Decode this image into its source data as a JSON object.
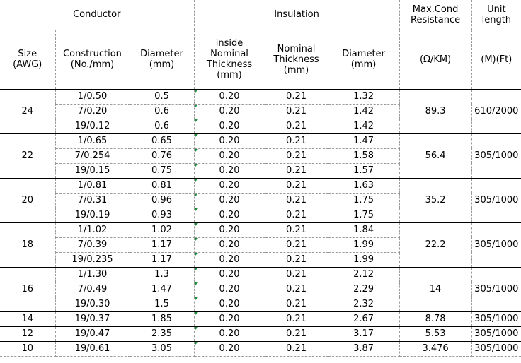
{
  "headers": {
    "conductor": "Conductor",
    "insulation": "Insulation",
    "max_cond_1": "Max.Cond",
    "max_cond_2": "Resistance",
    "unit_1": "Unit",
    "unit_2": "length",
    "size_1": "Size",
    "size_2": "(AWG)",
    "construction_1": "Construction",
    "construction_2": "(No./mm)",
    "diameter_1": "Diameter",
    "diameter_2": "(mm)",
    "inside_1": "inside",
    "inside_2": "Nominal",
    "inside_3": "Thickness",
    "inside_4": "(mm)",
    "nominal_1": "Nominal",
    "nominal_2": "Thickness",
    "nominal_3": "(mm)",
    "ins_diameter_1": "Diameter",
    "ins_diameter_2": "(mm)",
    "resistance_unit": "(Ω/KM)",
    "length_unit": "(M)(Ft)"
  },
  "groups": [
    {
      "size": "24",
      "resistance": "89.3",
      "length": "610/2000",
      "rows": [
        {
          "construction": "1/0.50",
          "diameter": "0.5",
          "inside": "0.20",
          "nominal": "0.21",
          "ins_diameter": "1.32"
        },
        {
          "construction": "7/0.20",
          "diameter": "0.6",
          "inside": "0.20",
          "nominal": "0.21",
          "ins_diameter": "1.42"
        },
        {
          "construction": "19/0.12",
          "diameter": "0.6",
          "inside": "0.20",
          "nominal": "0.21",
          "ins_diameter": "1.42"
        }
      ]
    },
    {
      "size": "22",
      "resistance": "56.4",
      "length": "305/1000",
      "rows": [
        {
          "construction": "1/0.65",
          "diameter": "0.65",
          "inside": "0.20",
          "nominal": "0.21",
          "ins_diameter": "1.47"
        },
        {
          "construction": "7/0.254",
          "diameter": "0.76",
          "inside": "0.20",
          "nominal": "0.21",
          "ins_diameter": "1.58"
        },
        {
          "construction": "19/0.15",
          "diameter": "0.75",
          "inside": "0.20",
          "nominal": "0.21",
          "ins_diameter": "1.57"
        }
      ]
    },
    {
      "size": "20",
      "resistance": "35.2",
      "length": "305/1000",
      "rows": [
        {
          "construction": "1/0.81",
          "diameter": "0.81",
          "inside": "0.20",
          "nominal": "0.21",
          "ins_diameter": "1.63"
        },
        {
          "construction": "7/0.31",
          "diameter": "0.96",
          "inside": "0.20",
          "nominal": "0.21",
          "ins_diameter": "1.75"
        },
        {
          "construction": "19/0.19",
          "diameter": "0.93",
          "inside": "0.20",
          "nominal": "0.21",
          "ins_diameter": "1.75"
        }
      ]
    },
    {
      "size": "18",
      "resistance": "22.2",
      "length": "305/1000",
      "rows": [
        {
          "construction": "1/1.02",
          "diameter": "1.02",
          "inside": "0.20",
          "nominal": "0.21",
          "ins_diameter": "1.84"
        },
        {
          "construction": "7/0.39",
          "diameter": "1.17",
          "inside": "0.20",
          "nominal": "0.21",
          "ins_diameter": "1.99"
        },
        {
          "construction": "19/0.235",
          "diameter": "1.17",
          "inside": "0.20",
          "nominal": "0.21",
          "ins_diameter": "1.99"
        }
      ]
    },
    {
      "size": "16",
      "resistance": "14",
      "length": "305/1000",
      "rows": [
        {
          "construction": "1/1.30",
          "diameter": "1.3",
          "inside": "0.20",
          "nominal": "0.21",
          "ins_diameter": "2.12"
        },
        {
          "construction": "7/0.49",
          "diameter": "1.47",
          "inside": "0.20",
          "nominal": "0.21",
          "ins_diameter": "2.29"
        },
        {
          "construction": "19/0.30",
          "diameter": "1.5",
          "inside": "0.20",
          "nominal": "0.21",
          "ins_diameter": "2.32"
        }
      ]
    }
  ],
  "single_rows": [
    {
      "size": "14",
      "construction": "19/0.37",
      "diameter": "1.85",
      "inside": "0.20",
      "nominal": "0.21",
      "ins_diameter": "2.67",
      "resistance": "8.78",
      "length": "305/1000"
    },
    {
      "size": "12",
      "construction": "19/0.47",
      "diameter": "2.35",
      "inside": "0.20",
      "nominal": "0.21",
      "ins_diameter": "3.17",
      "resistance": "5.53",
      "length": "305/1000"
    },
    {
      "size": "10",
      "construction": "19/0.61",
      "diameter": "3.05",
      "inside": "0.20",
      "nominal": "0.21",
      "ins_diameter": "3.87",
      "resistance": "3.476",
      "length": "305/1000"
    }
  ],
  "colors": {
    "comment_indicator": "#1e8e3e",
    "border": "#000000",
    "gridline": "#9a9a9a"
  }
}
